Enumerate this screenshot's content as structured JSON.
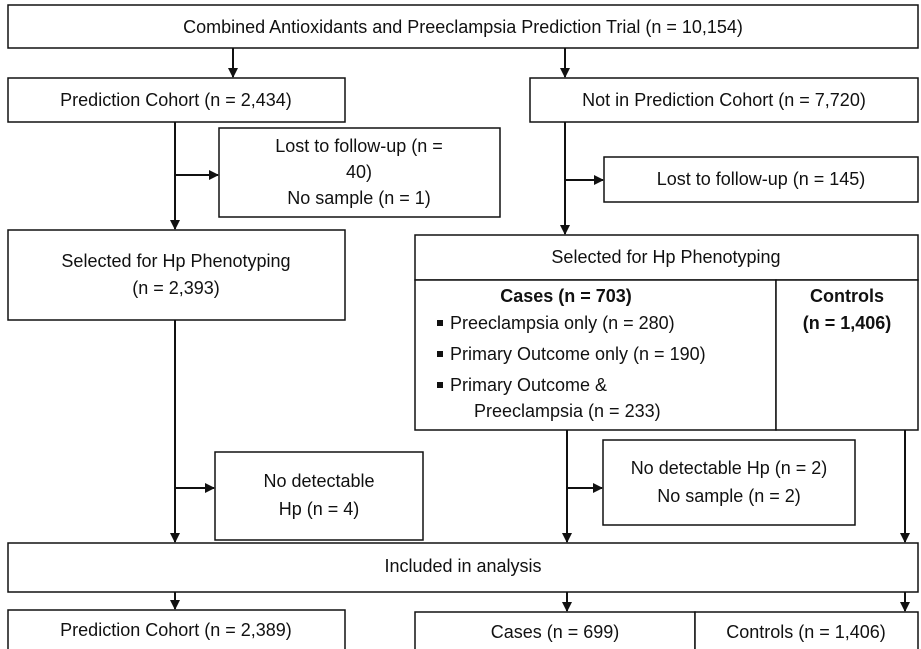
{
  "trial": "Combined Antioxidants and Preeclampsia Prediction Trial (n = 10,154)",
  "prediction_cohort": "Prediction Cohort (n = 2,434)",
  "not_in_cohort": "Not in Prediction Cohort (n = 7,720)",
  "lost_left": [
    "Lost to follow-up (n =",
    "40)",
    "No sample (n = 1)"
  ],
  "lost_right": "Lost to follow-up (n = 145)",
  "selected_left": [
    "Selected for Hp Phenotyping",
    "(n = 2,393)"
  ],
  "selected_right": {
    "title": "Selected for Hp Phenotyping",
    "cases": {
      "heading": "Cases (n = 703)",
      "items": [
        "Preeclampsia only (n = 280)",
        "Primary Outcome only (n = 190)",
        [
          "Primary Outcome &",
          "Preeclampsia (n = 233)"
        ]
      ]
    },
    "controls": [
      "Controls",
      "(n = 1,406)"
    ]
  },
  "excluded_left": [
    "No detectable",
    "Hp   (n = 4)"
  ],
  "excluded_right": [
    "No detectable Hp (n = 2)",
    "No sample (n = 2)"
  ],
  "included": "Included in analysis",
  "final": {
    "prediction_cohort": "Prediction Cohort (n = 2,389)",
    "cases": "Cases (n = 699)",
    "controls": "Controls (n = 1,406)"
  }
}
